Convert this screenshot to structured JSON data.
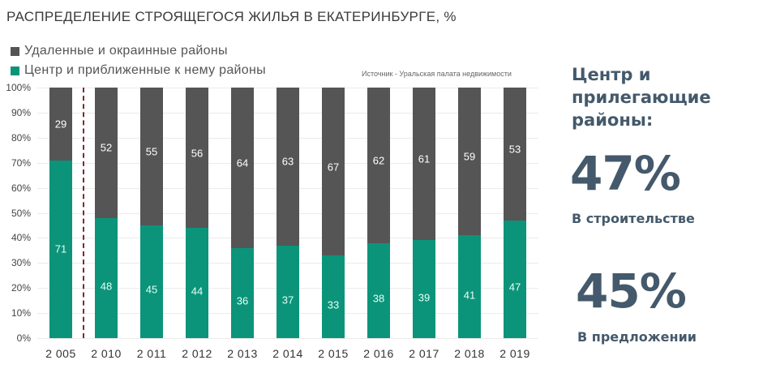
{
  "title": "РАСПРЕДЕЛЕНИЕ СТРОЯЩЕГОСЯ  ЖИЛЬЯ В ЕКАТЕРИНБУРГЕ, %",
  "legend": [
    {
      "label": "Удаленные и окраинные районы",
      "color": "#555555"
    },
    {
      "label": "Центр и приближенные к нему районы",
      "color": "#0b9479"
    }
  ],
  "source": "Источник - Уральская палата недвижимости",
  "side": {
    "heading_line1": "Центр и",
    "heading_line2": "прилегающие районы:",
    "stat1_value": "47%",
    "stat1_caption": "В строительстве",
    "stat2_value": "45%",
    "stat2_caption": "В предложении"
  },
  "colors": {
    "outer": "#555555",
    "center": "#0b9479",
    "divider": "#7a2a35",
    "side_text": "#44596b"
  },
  "chart_data": {
    "type": "bar",
    "stacked": true,
    "percent": true,
    "title": "РАСПРЕДЕЛЕНИЕ СТРОЯЩЕГОСЯ  ЖИЛЬЯ В ЕКАТЕРИНБУРГЕ, %",
    "categories": [
      "2 005",
      "2 010",
      "2 011",
      "2 012",
      "2 013",
      "2 014",
      "2 015",
      "2 016",
      "2 017",
      "2 018",
      "2 019"
    ],
    "series": [
      {
        "name": "Центр и приближенные к нему районы",
        "color": "#0b9479",
        "values": [
          71,
          48,
          45,
          44,
          36,
          37,
          33,
          38,
          39,
          41,
          47
        ]
      },
      {
        "name": "Удаленные и окраинные районы",
        "color": "#555555",
        "values": [
          29,
          52,
          55,
          56,
          64,
          63,
          67,
          62,
          61,
          59,
          53
        ]
      }
    ],
    "yticks": [
      "0%",
      "10%",
      "20%",
      "30%",
      "40%",
      "50%",
      "60%",
      "70%",
      "80%",
      "90%",
      "100%"
    ],
    "ylim": [
      0,
      100
    ],
    "xlabel": "",
    "ylabel": "",
    "grid": true,
    "legend_position": "top-left",
    "annotations": [
      "dashed vertical divider between 2005 and 2010"
    ]
  }
}
